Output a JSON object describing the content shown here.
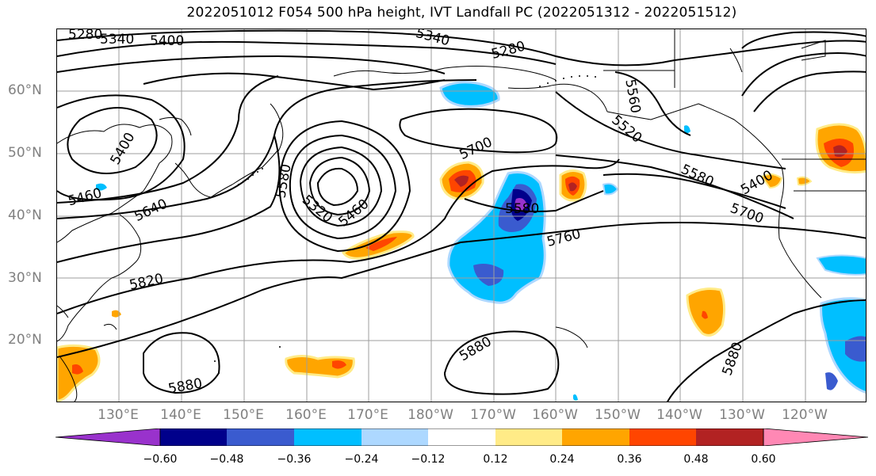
{
  "title": "2022051012 F054 500 hPa height, IVT Landfall PC (2022051312 - 2022051512)",
  "lat_labels": [
    "60°N",
    "50°N",
    "40°N",
    "30°N",
    "20°N"
  ],
  "lon_labels": [
    "130°E",
    "140°E",
    "150°E",
    "160°E",
    "170°E",
    "180°W",
    "170°W",
    "160°W",
    "150°W",
    "140°W",
    "130°W",
    "120°W"
  ],
  "contour_labels": [
    "5280",
    "5340",
    "5400",
    "5340",
    "5280",
    "5560",
    "5400",
    "5460",
    "5640",
    "5580",
    "5320",
    "5460",
    "5700",
    "5520",
    "5580",
    "5400",
    "5700",
    "5580",
    "5760",
    "5820",
    "5880",
    "5880",
    "5880"
  ],
  "colorbar": {
    "colors": [
      "#9932cc",
      "#00008b",
      "#3a5bcf",
      "#00bfff",
      "#add8ff",
      "#ffffff",
      "#ffeb87",
      "#ffa500",
      "#ff4500",
      "#b22222",
      "#ff88b4"
    ],
    "ticks": [
      "−0.60",
      "−0.48",
      "−0.36",
      "−0.24",
      "−0.12",
      "0.12",
      "0.24",
      "0.36",
      "0.48",
      "0.60"
    ]
  },
  "legend": {
    "height_contour_color": "#000000",
    "grid_color": "#9e9e9e",
    "coastline_color": "#000000"
  }
}
